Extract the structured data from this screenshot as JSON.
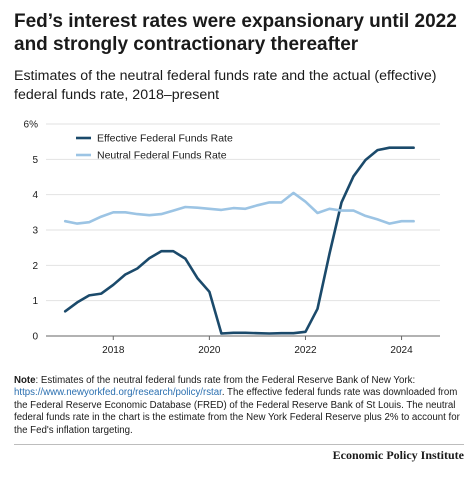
{
  "header": {
    "title": "Fed’s interest rates were expansionary until 2022 and strongly contractionary thereafter",
    "subtitle": "Estimates of the neutral federal funds rate and the actual (effective) federal funds rate, 2018–present"
  },
  "chart_data": {
    "type": "line",
    "title": "Fed’s interest rates were expansionary until 2022 and strongly contractionary thereafter",
    "subtitle": "Estimates of the neutral federal funds rate and the actual (effective) federal funds rate, 2018–present",
    "xlabel": "",
    "ylabel": "",
    "xlim": [
      2016.6,
      2024.8
    ],
    "ylim": [
      0,
      6
    ],
    "x_ticks": [
      2018,
      2020,
      2022,
      2024
    ],
    "x_tick_labels": [
      "2018",
      "2020",
      "2022",
      "2024"
    ],
    "y_ticks": [
      0,
      1,
      2,
      3,
      4,
      5,
      6
    ],
    "y_tick_labels": [
      "0",
      "1",
      "2",
      "3",
      "4",
      "5",
      "6%"
    ],
    "grid": "horizontal",
    "legend_position": "top-left",
    "series": [
      {
        "name": "Effective Federal Funds Rate",
        "color": "#1b4a6b",
        "x": [
          2017.0,
          2017.25,
          2017.5,
          2017.75,
          2018.0,
          2018.25,
          2018.5,
          2018.75,
          2019.0,
          2019.25,
          2019.5,
          2019.75,
          2020.0,
          2020.25,
          2020.5,
          2020.75,
          2021.0,
          2021.25,
          2021.5,
          2021.75,
          2022.0,
          2022.25,
          2022.5,
          2022.75,
          2023.0,
          2023.25,
          2023.5,
          2023.75,
          2024.0,
          2024.25
        ],
        "values": [
          0.7,
          0.95,
          1.15,
          1.2,
          1.45,
          1.74,
          1.91,
          2.2,
          2.4,
          2.4,
          2.19,
          1.64,
          1.25,
          0.07,
          0.09,
          0.09,
          0.08,
          0.07,
          0.08,
          0.08,
          0.12,
          0.77,
          2.33,
          3.78,
          4.52,
          4.98,
          5.26,
          5.33,
          5.33,
          5.33
        ]
      },
      {
        "name": "Neutral Federal Funds Rate",
        "color": "#9cc4e4",
        "x": [
          2017.0,
          2017.25,
          2017.5,
          2017.75,
          2018.0,
          2018.25,
          2018.5,
          2018.75,
          2019.0,
          2019.25,
          2019.5,
          2019.75,
          2020.0,
          2020.25,
          2020.5,
          2020.75,
          2021.0,
          2021.25,
          2021.5,
          2021.75,
          2022.0,
          2022.25,
          2022.5,
          2022.75,
          2023.0,
          2023.25,
          2023.5,
          2023.75,
          2024.0,
          2024.25
        ],
        "values": [
          3.25,
          3.18,
          3.22,
          3.38,
          3.5,
          3.5,
          3.45,
          3.42,
          3.45,
          3.55,
          3.65,
          3.63,
          3.6,
          3.57,
          3.62,
          3.6,
          3.7,
          3.78,
          3.78,
          4.05,
          3.8,
          3.48,
          3.6,
          3.55,
          3.55,
          3.4,
          3.3,
          3.18,
          3.25,
          3.25
        ]
      }
    ]
  },
  "note": {
    "label": "Note",
    "text_before_link": ": Estimates of the neutral federal funds rate from the Federal Reserve Bank of New York: ",
    "link": "https://www.newyorkfed.org/research/policy/rstar",
    "text_after_link": ". The effective federal funds rate was downloaded from the Federal Reserve Economic Database (FRED) of the Federal Reserve Bank of St Louis. The neutral federal funds rate in the chart is the estimate from the New York Federal Reserve plus 2% to account for the Fed's inflation targeting."
  },
  "footer": {
    "brand": "Economic Policy Institute"
  }
}
